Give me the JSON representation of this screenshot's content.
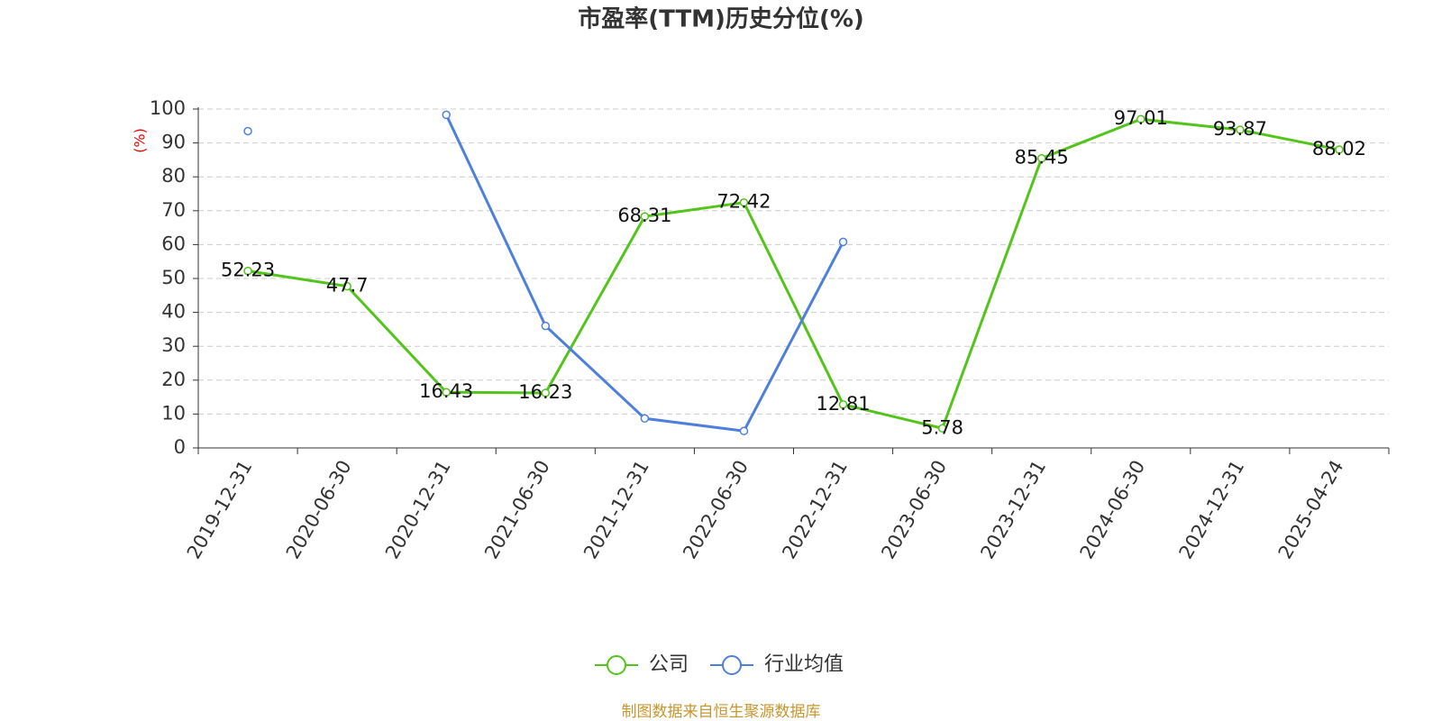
{
  "chart_data": {
    "type": "line",
    "title": "市盈率(TTM)历史分位(%)",
    "y_label": "(%)",
    "source": "制图数据来自恒生聚源数据库",
    "categories": [
      "2019-12-31",
      "2020-06-30",
      "2020-12-31",
      "2021-06-30",
      "2021-12-31",
      "2022-06-30",
      "2022-12-31",
      "2023-06-30",
      "2023-12-31",
      "2024-06-30",
      "2024-12-31",
      "2025-04-24"
    ],
    "series": [
      {
        "name": "公司",
        "color": "#52c41a",
        "data_labels": true,
        "values": [
          52.23,
          47.7,
          16.43,
          16.23,
          68.31,
          72.42,
          12.81,
          5.78,
          85.45,
          97.01,
          93.87,
          88.02
        ]
      },
      {
        "name": "行业均值",
        "color": "#4e7fdc",
        "data_labels": false,
        "values": [
          93.5,
          null,
          98.3,
          36,
          8.7,
          5,
          60.8,
          null,
          null,
          null,
          null,
          null
        ]
      }
    ],
    "ylim": [
      0,
      100
    ],
    "yticks": [
      0,
      10,
      20,
      30,
      40,
      50,
      60,
      70,
      80,
      90,
      100
    ],
    "grid": true,
    "legend": "bottom"
  }
}
